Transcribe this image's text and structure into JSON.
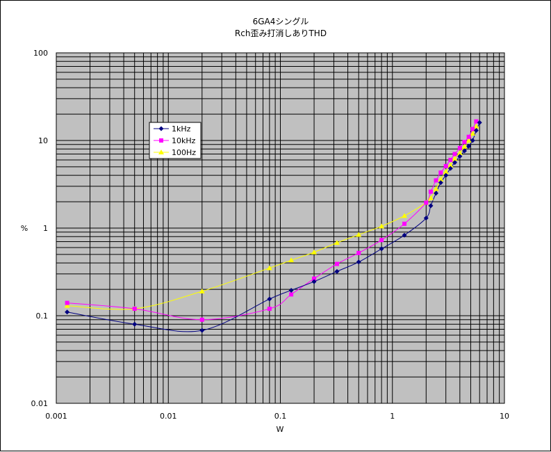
{
  "chart_data": {
    "type": "line",
    "title": "6GA4シングル",
    "subtitle": "Rch歪み打消しありTHD",
    "xlabel": "W",
    "ylabel": "%",
    "xscale": "log",
    "yscale": "log",
    "xlim": [
      0.001,
      10
    ],
    "ylim": [
      0.01,
      100
    ],
    "xticks": [
      "0.001",
      "0.01",
      "0.1",
      "1",
      "10"
    ],
    "yticks": [
      "100",
      "10",
      "1",
      "0.1",
      "0.01"
    ],
    "grid": true,
    "legend_position": "upper-left",
    "series": [
      {
        "name": "1kHz",
        "color": "#000080",
        "marker": "diamond",
        "x": [
          0.00125,
          0.005,
          0.02,
          0.08,
          0.125,
          0.2,
          0.32,
          0.5,
          0.8,
          1.28,
          2.0,
          2.2,
          2.45,
          2.7,
          3.0,
          3.3,
          3.6,
          4.0,
          4.4,
          4.8,
          5.2,
          5.6,
          6.0
        ],
        "y": [
          0.11,
          0.08,
          0.068,
          0.155,
          0.195,
          0.245,
          0.32,
          0.41,
          0.58,
          0.83,
          1.3,
          1.8,
          2.5,
          3.3,
          4.0,
          4.8,
          5.6,
          6.6,
          7.6,
          8.6,
          10.0,
          13.0,
          16.0
        ]
      },
      {
        "name": "10kHz",
        "color": "#ff00ff",
        "marker": "square",
        "x": [
          0.00125,
          0.005,
          0.02,
          0.08,
          0.125,
          0.2,
          0.32,
          0.5,
          0.8,
          1.28,
          2.0,
          2.2,
          2.45,
          2.7,
          3.0,
          3.3,
          3.6,
          4.0,
          4.4,
          4.8,
          5.2,
          5.6
        ],
        "y": [
          0.14,
          0.12,
          0.09,
          0.12,
          0.175,
          0.265,
          0.39,
          0.52,
          0.73,
          1.12,
          1.95,
          2.6,
          3.5,
          4.3,
          5.1,
          6.0,
          7.0,
          8.2,
          9.6,
          11.0,
          13.5,
          16.5
        ]
      },
      {
        "name": "100Hz",
        "color": "#ffff00",
        "marker": "triangle",
        "x": [
          0.00125,
          0.005,
          0.02,
          0.08,
          0.125,
          0.2,
          0.32,
          0.5,
          0.8,
          1.28,
          2.0,
          2.2,
          2.45,
          2.7,
          3.0,
          3.3,
          3.6,
          4.0,
          4.4,
          4.8,
          5.2,
          5.6
        ],
        "y": [
          0.13,
          0.12,
          0.19,
          0.35,
          0.43,
          0.53,
          0.68,
          0.84,
          1.05,
          1.38,
          1.95,
          2.2,
          2.8,
          3.6,
          4.4,
          5.2,
          6.2,
          7.2,
          8.5,
          10.0,
          12.0,
          14.5
        ]
      }
    ]
  },
  "colors": {
    "plot_background": "#c0c0c0",
    "grid": "#000000",
    "page_background": "#ffffff"
  }
}
